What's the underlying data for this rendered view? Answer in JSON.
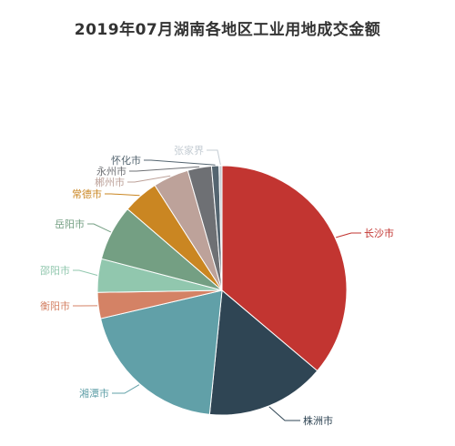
{
  "chart_data": {
    "type": "pie",
    "title": "2019年07月湖南各地区工业用地成交金额",
    "categories": [
      "长沙市",
      "株洲市",
      "湘潭市",
      "衡阳市",
      "邵阳市",
      "岳阳市",
      "常德市",
      "郴州市",
      "永州市",
      "怀化市",
      "张家界"
    ],
    "values": [
      37.5,
      16.0,
      20.5,
      3.5,
      4.5,
      7.5,
      4.8,
      4.8,
      3.2,
      1.0,
      0.4
    ],
    "colors": [
      "#c23531",
      "#2f4554",
      "#61a0a8",
      "#d48265",
      "#91c7ae",
      "#749f83",
      "#ca8622",
      "#bda29a",
      "#6e7074",
      "#546570",
      "#c4ccd3"
    ],
    "legend": "none"
  }
}
